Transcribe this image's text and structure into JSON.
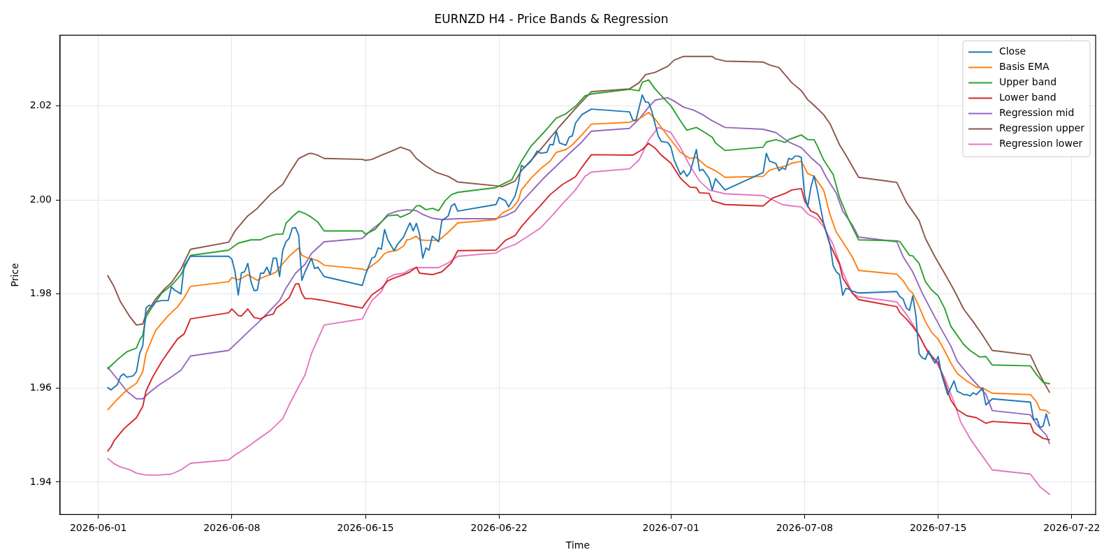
{
  "chart_data": {
    "type": "line",
    "title": "EURNZD H4 - Price Bands & Regression",
    "xlabel": "Time",
    "ylabel": "Price",
    "xlim": [
      "2026-05-30T00:00",
      "2026-07-23T06:00"
    ],
    "xticks": [
      "2026-06-01",
      "2026-06-08",
      "2026-06-15",
      "2026-06-22",
      "2026-07-01",
      "2026-07-08",
      "2026-07-15",
      "2026-07-22"
    ],
    "ylim": [
      1.9331,
      2.035
    ],
    "yticks": [
      1.94,
      1.96,
      1.98,
      {
        "value": 2,
        "label": "2.00"
      },
      2.02
    ],
    "grid": true,
    "legend": "top right",
    "series": [
      {
        "name": "Close",
        "color": "#1f77b4",
        "x": [
          "2026-06-01T12:00",
          "2026-06-01T16:00",
          "2026-06-02T00:00",
          "2026-06-02T04:00",
          "2026-06-02T08:00",
          "2026-06-02T12:00",
          "2026-06-02T20:00",
          "2026-06-03T00:00",
          "2026-06-03T04:00",
          "2026-06-03T08:00",
          "2026-06-03T12:00",
          "2026-06-03T16:00",
          "2026-06-03T20:00",
          "2026-06-04T00:00",
          "2026-06-04T08:00",
          "2026-06-04T16:00",
          "2026-06-04T20:00",
          "2026-06-05T00:00",
          "2026-06-05T08:00",
          "2026-06-05T12:00",
          "2026-06-05T20:00",
          "2026-06-07T20:00",
          "2026-06-08T00:00",
          "2026-06-08T04:00",
          "2026-06-08T08:00",
          "2026-06-08T12:00",
          "2026-06-08T16:00",
          "2026-06-08T20:00",
          "2026-06-09T00:00",
          "2026-06-09T04:00",
          "2026-06-09T08:00",
          "2026-06-09T12:00",
          "2026-06-09T16:00",
          "2026-06-09T20:00",
          "2026-06-10T00:00",
          "2026-06-10T04:00",
          "2026-06-10T08:00",
          "2026-06-10T12:00",
          "2026-06-10T16:00",
          "2026-06-10T20:00",
          "2026-06-11T00:00",
          "2026-06-11T04:00",
          "2026-06-11T08:00",
          "2026-06-11T12:00",
          "2026-06-11T16:00",
          "2026-06-11T20:00",
          "2026-06-12T04:00",
          "2026-06-12T08:00",
          "2026-06-12T12:00",
          "2026-06-12T20:00",
          "2026-06-14T20:00",
          "2026-06-15T00:00",
          "2026-06-15T08:00",
          "2026-06-15T12:00",
          "2026-06-15T16:00",
          "2026-06-15T20:00",
          "2026-06-16T00:00",
          "2026-06-16T04:00",
          "2026-06-16T12:00",
          "2026-06-16T16:00",
          "2026-06-17T00:00",
          "2026-06-17T04:00",
          "2026-06-17T08:00",
          "2026-06-17T12:00",
          "2026-06-17T16:00",
          "2026-06-17T20:00",
          "2026-06-18T00:00",
          "2026-06-18T04:00",
          "2026-06-18T08:00",
          "2026-06-18T12:00",
          "2026-06-18T20:00",
          "2026-06-19T00:00",
          "2026-06-19T08:00",
          "2026-06-19T12:00",
          "2026-06-19T16:00",
          "2026-06-19T20:00",
          "2026-06-21T20:00",
          "2026-06-22T00:00",
          "2026-06-22T08:00",
          "2026-06-22T12:00",
          "2026-06-22T20:00",
          "2026-06-23T00:00",
          "2026-06-23T04:00",
          "2026-06-23T08:00",
          "2026-06-23T16:00",
          "2026-06-24T00:00",
          "2026-06-24T04:00",
          "2026-06-24T12:00",
          "2026-06-24T16:00",
          "2026-06-24T20:00",
          "2026-06-25T00:00",
          "2026-06-25T04:00",
          "2026-06-25T12:00",
          "2026-06-25T16:00",
          "2026-06-25T20:00",
          "2026-06-26T00:00",
          "2026-06-26T08:00",
          "2026-06-26T20:00",
          "2026-06-28T20:00",
          "2026-06-29T00:00",
          "2026-06-29T04:00",
          "2026-06-29T12:00",
          "2026-06-29T16:00",
          "2026-06-29T20:00",
          "2026-06-30T00:00",
          "2026-06-30T08:00",
          "2026-06-30T12:00",
          "2026-06-30T20:00",
          "2026-07-01T00:00",
          "2026-07-01T04:00",
          "2026-07-01T12:00",
          "2026-07-01T16:00",
          "2026-07-01T20:00",
          "2026-07-02T00:00",
          "2026-07-02T08:00",
          "2026-07-02T12:00",
          "2026-07-02T16:00",
          "2026-07-03T00:00",
          "2026-07-03T04:00",
          "2026-07-03T08:00",
          "2026-07-03T12:00",
          "2026-07-03T20:00",
          "2026-07-05T20:00",
          "2026-07-06T00:00",
          "2026-07-06T04:00",
          "2026-07-06T08:00",
          "2026-07-06T12:00",
          "2026-07-06T16:00",
          "2026-07-06T20:00",
          "2026-07-07T00:00",
          "2026-07-07T04:00",
          "2026-07-07T08:00",
          "2026-07-07T12:00",
          "2026-07-07T16:00",
          "2026-07-07T20:00",
          "2026-07-08T00:00",
          "2026-07-08T04:00",
          "2026-07-08T08:00",
          "2026-07-08T12:00",
          "2026-07-08T16:00",
          "2026-07-08T20:00",
          "2026-07-09T00:00",
          "2026-07-09T08:00",
          "2026-07-09T12:00",
          "2026-07-09T16:00",
          "2026-07-09T20:00",
          "2026-07-10T00:00",
          "2026-07-10T04:00",
          "2026-07-10T08:00",
          "2026-07-10T12:00",
          "2026-07-10T20:00",
          "2026-07-12T20:00",
          "2026-07-13T00:00",
          "2026-07-13T04:00",
          "2026-07-13T08:00",
          "2026-07-13T12:00",
          "2026-07-13T16:00",
          "2026-07-13T20:00",
          "2026-07-14T00:00",
          "2026-07-14T04:00",
          "2026-07-14T08:00",
          "2026-07-14T12:00",
          "2026-07-14T16:00",
          "2026-07-14T20:00",
          "2026-07-15T00:00",
          "2026-07-15T04:00",
          "2026-07-15T12:00",
          "2026-07-15T20:00",
          "2026-07-16T00:00",
          "2026-07-16T04:00",
          "2026-07-16T08:00",
          "2026-07-16T12:00",
          "2026-07-16T16:00",
          "2026-07-16T20:00",
          "2026-07-17T00:00",
          "2026-07-17T04:00",
          "2026-07-17T08:00",
          "2026-07-17T12:00",
          "2026-07-17T20:00",
          "2026-07-19T20:00",
          "2026-07-20T00:00",
          "2026-07-20T04:00",
          "2026-07-20T08:00",
          "2026-07-20T12:00",
          "2026-07-20T16:00",
          "2026-07-20T20:00"
        ],
        "values": [
          1.9601,
          1.9596,
          1.9607,
          1.9625,
          1.963,
          1.9623,
          1.9626,
          1.9635,
          1.9673,
          1.969,
          1.977,
          1.9776,
          1.9773,
          1.9783,
          1.9786,
          1.9786,
          1.9815,
          1.9808,
          1.98,
          1.986,
          1.988,
          1.988,
          1.9874,
          1.9847,
          1.9798,
          1.9845,
          1.9847,
          1.9865,
          1.9826,
          1.9807,
          1.9808,
          1.9844,
          1.9844,
          1.9857,
          1.9841,
          1.9876,
          1.9876,
          1.9837,
          1.9893,
          1.9911,
          1.9918,
          1.994,
          1.9941,
          1.9925,
          1.9829,
          1.9847,
          1.9876,
          1.9854,
          1.9857,
          1.9837,
          1.9818,
          1.9841,
          1.9876,
          1.9879,
          1.9898,
          1.9895,
          1.9937,
          1.9915,
          1.9892,
          1.9905,
          1.9921,
          1.9937,
          1.9951,
          1.9934,
          1.995,
          1.9927,
          1.9876,
          1.9898,
          1.9893,
          1.9923,
          1.9911,
          1.9956,
          1.9966,
          1.9987,
          1.9992,
          1.9976,
          1.999,
          2.0005,
          1.9998,
          1.9985,
          2.0008,
          2.0033,
          2.0073,
          2.0069,
          2.0082,
          2.0104,
          2.0099,
          2.0101,
          2.0118,
          2.0117,
          2.0146,
          2.0121,
          2.0116,
          2.0133,
          2.0136,
          2.0163,
          2.0181,
          2.0193,
          2.0187,
          2.017,
          2.0169,
          2.0223,
          2.0208,
          2.0207,
          2.0188,
          2.0136,
          2.0124,
          2.0122,
          2.0112,
          2.0085,
          2.0054,
          2.0062,
          2.005,
          2.0058,
          2.0107,
          2.0062,
          2.0065,
          2.0046,
          2.0021,
          2.0045,
          2.0037,
          2.0021,
          2.0058,
          2.0099,
          2.0082,
          2.008,
          2.0077,
          2.0062,
          2.0068,
          2.0065,
          2.0088,
          2.0086,
          2.0093,
          2.0093,
          2.009,
          2.0011,
          1.9985,
          2.0027,
          2.0051,
          2.0021,
          1.9985,
          1.995,
          1.9905,
          1.986,
          1.9847,
          1.9841,
          1.9797,
          1.9812,
          1.981,
          1.9806,
          1.9802,
          1.9805,
          1.9794,
          1.9789,
          1.977,
          1.9765,
          1.9796,
          1.9754,
          1.9673,
          1.9664,
          1.9661,
          1.9679,
          1.9664,
          1.9653,
          1.9667,
          1.9631,
          1.9586,
          1.9615,
          1.9593,
          1.959,
          1.9586,
          1.9586,
          1.9583,
          1.959,
          1.9586,
          1.9593,
          1.96,
          1.9564,
          1.9577,
          1.957,
          1.9532,
          1.9535,
          1.9516,
          1.9519,
          1.9545,
          1.952
        ]
      },
      {
        "name": "Basis EMA",
        "color": "#ff7f0e",
        "x": [
          "2026-06-01T12:00",
          "2026-06-02T00:00",
          "2026-06-02T12:00",
          "2026-06-03T00:00",
          "2026-06-03T08:00",
          "2026-06-03T12:00",
          "2026-06-04T00:00",
          "2026-06-04T16:00",
          "2026-06-05T04:00",
          "2026-06-05T12:00",
          "2026-06-05T20:00",
          "2026-06-07T20:00",
          "2026-06-08T00:00",
          "2026-06-08T08:00",
          "2026-06-08T12:00",
          "2026-06-08T20:00",
          "2026-06-09T08:00",
          "2026-06-09T16:00",
          "2026-06-10T00:00",
          "2026-06-10T08:00",
          "2026-06-10T12:00",
          "2026-06-11T00:00",
          "2026-06-11T12:00",
          "2026-06-11T16:00",
          "2026-06-12T00:00",
          "2026-06-12T12:00",
          "2026-06-12T20:00",
          "2026-06-14T20:00",
          "2026-06-15T00:00",
          "2026-06-15T08:00",
          "2026-06-15T16:00",
          "2026-06-16T00:00",
          "2026-06-16T04:00",
          "2026-06-16T16:00",
          "2026-06-17T00:00",
          "2026-06-17T04:00",
          "2026-06-17T08:00",
          "2026-06-17T16:00",
          "2026-06-17T20:00",
          "2026-06-18T04:00",
          "2026-06-18T20:00",
          "2026-06-19T08:00",
          "2026-06-19T20:00",
          "2026-06-21T20:00",
          "2026-06-22T04:00",
          "2026-06-22T16:00",
          "2026-06-23T00:00",
          "2026-06-23T04:00",
          "2026-06-23T16:00",
          "2026-06-24T04:00",
          "2026-06-24T16:00",
          "2026-06-25T00:00",
          "2026-06-25T12:00",
          "2026-06-25T20:00",
          "2026-06-26T08:00",
          "2026-06-26T20:00",
          "2026-06-28T20:00",
          "2026-06-29T08:00",
          "2026-06-29T20:00",
          "2026-06-30T04:00",
          "2026-06-30T20:00",
          "2026-07-01T12:00",
          "2026-07-02T00:00",
          "2026-07-02T08:00",
          "2026-07-02T20:00",
          "2026-07-03T08:00",
          "2026-07-03T20:00",
          "2026-07-05T20:00",
          "2026-07-06T04:00",
          "2026-07-06T12:00",
          "2026-07-07T00:00",
          "2026-07-07T08:00",
          "2026-07-07T20:00",
          "2026-07-08T04:00",
          "2026-07-08T12:00",
          "2026-07-09T00:00",
          "2026-07-09T08:00",
          "2026-07-09T16:00",
          "2026-07-10T00:00",
          "2026-07-10T12:00",
          "2026-07-10T20:00",
          "2026-07-12T20:00",
          "2026-07-13T04:00",
          "2026-07-13T12:00",
          "2026-07-13T16:00",
          "2026-07-14T00:00",
          "2026-07-14T08:00",
          "2026-07-14T16:00",
          "2026-07-15T00:00",
          "2026-07-15T08:00",
          "2026-07-15T16:00",
          "2026-07-16T00:00",
          "2026-07-16T12:00",
          "2026-07-17T00:00",
          "2026-07-17T08:00",
          "2026-07-17T20:00",
          "2026-07-19T20:00",
          "2026-07-20T04:00",
          "2026-07-20T08:00",
          "2026-07-20T16:00",
          "2026-07-20T20:00"
        ],
        "values": [
          1.9554,
          1.9576,
          1.9596,
          1.961,
          1.9635,
          1.9673,
          1.9722,
          1.9754,
          1.9773,
          1.9792,
          1.9816,
          1.9826,
          1.9835,
          1.983,
          1.9833,
          1.9841,
          1.9829,
          1.9836,
          1.9841,
          1.9847,
          1.9857,
          1.988,
          1.9898,
          1.9882,
          1.9876,
          1.9871,
          1.9861,
          1.9853,
          1.985,
          1.986,
          1.987,
          1.9886,
          1.9889,
          1.9893,
          1.9902,
          1.9915,
          1.9916,
          1.9923,
          1.9915,
          1.9914,
          1.9914,
          1.9931,
          1.9951,
          1.9958,
          1.9972,
          1.9982,
          1.9998,
          2.0021,
          2.0046,
          2.0066,
          2.0082,
          2.0101,
          2.0107,
          2.0117,
          2.0138,
          2.0161,
          2.0165,
          2.0172,
          2.0186,
          2.0172,
          2.0136,
          2.0101,
          2.0088,
          2.009,
          2.0072,
          2.0062,
          2.0048,
          2.005,
          2.0063,
          2.0067,
          2.0072,
          2.0078,
          2.0082,
          2.0056,
          2.005,
          2.0021,
          1.9969,
          1.9931,
          1.9911,
          1.9879,
          1.985,
          1.9842,
          1.9828,
          1.9807,
          1.9802,
          1.9773,
          1.9741,
          1.9718,
          1.9704,
          1.968,
          1.9653,
          1.9631,
          1.9615,
          1.9602,
          1.96,
          1.9589,
          1.9586,
          1.957,
          1.9554,
          1.9552,
          1.9546
        ]
      },
      {
        "name": "Upper band",
        "color": "#2ca02c",
        "x": [
          "2026-06-01T12:00",
          "2026-06-01T20:00",
          "2026-06-02T04:00",
          "2026-06-02T12:00",
          "2026-06-03T00:00",
          "2026-06-03T04:00",
          "2026-06-03T08:00",
          "2026-06-03T12:00",
          "2026-06-03T20:00",
          "2026-06-04T08:00",
          "2026-06-04T20:00",
          "2026-06-05T04:00",
          "2026-06-05T08:00",
          "2026-06-05T20:00",
          "2026-06-07T20:00",
          "2026-06-08T08:00",
          "2026-06-09T00:00",
          "2026-06-09T12:00",
          "2026-06-09T20:00",
          "2026-06-10T08:00",
          "2026-06-10T16:00",
          "2026-06-10T20:00",
          "2026-06-11T04:00",
          "2026-06-11T12:00",
          "2026-06-11T20:00",
          "2026-06-12T04:00",
          "2026-06-12T12:00",
          "2026-06-12T20:00",
          "2026-06-14T20:00",
          "2026-06-15T00:00",
          "2026-06-15T12:00",
          "2026-06-15T20:00",
          "2026-06-16T04:00",
          "2026-06-16T16:00",
          "2026-06-16T20:00",
          "2026-06-17T08:00",
          "2026-06-17T16:00",
          "2026-06-17T20:00",
          "2026-06-18T04:00",
          "2026-06-18T12:00",
          "2026-06-18T20:00",
          "2026-06-19T04:00",
          "2026-06-19T12:00",
          "2026-06-19T20:00",
          "2026-06-21T20:00",
          "2026-06-22T04:00",
          "2026-06-22T16:00",
          "2026-06-23T04:00",
          "2026-06-23T16:00",
          "2026-06-24T08:00",
          "2026-06-25T00:00",
          "2026-06-25T12:00",
          "2026-06-26T00:00",
          "2026-06-26T12:00",
          "2026-06-26T20:00",
          "2026-06-28T20:00",
          "2026-06-29T08:00",
          "2026-06-29T12:00",
          "2026-06-29T20:00",
          "2026-06-30T04:00",
          "2026-06-30T16:00",
          "2026-07-01T00:00",
          "2026-07-01T12:00",
          "2026-07-01T20:00",
          "2026-07-02T08:00",
          "2026-07-02T16:00",
          "2026-07-03T04:00",
          "2026-07-03T08:00",
          "2026-07-03T20:00",
          "2026-07-05T20:00",
          "2026-07-06T00:00",
          "2026-07-06T12:00",
          "2026-07-07T00:00",
          "2026-07-07T04:00",
          "2026-07-07T12:00",
          "2026-07-07T20:00",
          "2026-07-08T04:00",
          "2026-07-08T12:00",
          "2026-07-08T16:00",
          "2026-07-09T00:00",
          "2026-07-09T12:00",
          "2026-07-09T20:00",
          "2026-07-10T08:00",
          "2026-07-10T20:00",
          "2026-07-12T20:00",
          "2026-07-13T00:00",
          "2026-07-13T12:00",
          "2026-07-13T16:00",
          "2026-07-14T00:00",
          "2026-07-14T08:00",
          "2026-07-14T16:00",
          "2026-07-15T00:00",
          "2026-07-15T08:00",
          "2026-07-15T16:00",
          "2026-07-16T00:00",
          "2026-07-16T08:00",
          "2026-07-16T16:00",
          "2026-07-17T04:00",
          "2026-07-17T12:00",
          "2026-07-17T20:00",
          "2026-07-19T20:00",
          "2026-07-20T04:00",
          "2026-07-20T12:00",
          "2026-07-20T20:00"
        ],
        "values": [
          1.9641,
          1.9654,
          1.9666,
          1.9677,
          1.9685,
          1.9702,
          1.9712,
          1.9751,
          1.9773,
          1.9802,
          1.9818,
          1.9833,
          1.9841,
          1.9882,
          1.9893,
          1.9908,
          1.9915,
          1.9915,
          1.9921,
          1.9927,
          1.9927,
          1.995,
          1.9964,
          1.9976,
          1.9971,
          1.9963,
          1.9953,
          1.9934,
          1.9934,
          1.9927,
          1.9937,
          1.9953,
          1.9966,
          1.9968,
          1.9963,
          1.9972,
          1.9987,
          1.9988,
          1.9979,
          1.9982,
          1.9977,
          1.9998,
          2.0011,
          2.0016,
          2.0026,
          2.0033,
          2.0043,
          2.0082,
          2.0114,
          2.0143,
          2.0174,
          2.0183,
          2.0199,
          2.0221,
          2.0225,
          2.0235,
          2.0232,
          2.025,
          2.0255,
          2.0236,
          2.0214,
          2.02,
          2.0168,
          2.0148,
          2.0154,
          2.0146,
          2.0133,
          2.0121,
          2.0105,
          2.0112,
          2.0123,
          2.0128,
          2.0122,
          2.0128,
          2.0133,
          2.0138,
          2.0128,
          2.0128,
          2.0115,
          2.0085,
          2.0054,
          2.0005,
          1.9956,
          1.9915,
          1.9913,
          1.9911,
          1.9882,
          1.9881,
          1.9865,
          1.9826,
          1.9808,
          1.9796,
          1.977,
          1.9731,
          1.9712,
          1.9693,
          1.968,
          1.9666,
          1.9667,
          1.9649,
          1.9647,
          1.9628,
          1.9612,
          1.9609
        ]
      },
      {
        "name": "Lower band",
        "color": "#d62728",
        "x": [
          "2026-06-01T12:00",
          "2026-06-01T16:00",
          "2026-06-01T20:00",
          "2026-06-02T08:00",
          "2026-06-02T16:00",
          "2026-06-03T00:00",
          "2026-06-03T08:00",
          "2026-06-03T12:00",
          "2026-06-03T20:00",
          "2026-06-04T08:00",
          "2026-06-04T20:00",
          "2026-06-05T04:00",
          "2026-06-05T12:00",
          "2026-06-05T20:00",
          "2026-06-07T20:00",
          "2026-06-08T00:00",
          "2026-06-08T08:00",
          "2026-06-08T12:00",
          "2026-06-08T20:00",
          "2026-06-09T04:00",
          "2026-06-09T12:00",
          "2026-06-09T20:00",
          "2026-06-10T04:00",
          "2026-06-10T08:00",
          "2026-06-10T16:00",
          "2026-06-11T00:00",
          "2026-06-11T08:00",
          "2026-06-11T12:00",
          "2026-06-11T16:00",
          "2026-06-11T20:00",
          "2026-06-12T04:00",
          "2026-06-12T12:00",
          "2026-06-12T20:00",
          "2026-06-14T20:00",
          "2026-06-15T00:00",
          "2026-06-15T08:00",
          "2026-06-15T20:00",
          "2026-06-16T04:00",
          "2026-06-16T12:00",
          "2026-06-17T00:00",
          "2026-06-17T08:00",
          "2026-06-17T16:00",
          "2026-06-17T20:00",
          "2026-06-18T12:00",
          "2026-06-19T00:00",
          "2026-06-19T12:00",
          "2026-06-19T20:00",
          "2026-06-21T20:00",
          "2026-06-22T08:00",
          "2026-06-22T20:00",
          "2026-06-23T04:00",
          "2026-06-23T16:00",
          "2026-06-24T04:00",
          "2026-06-24T16:00",
          "2026-06-25T08:00",
          "2026-06-26T00:00",
          "2026-06-26T08:00",
          "2026-06-26T20:00",
          "2026-06-29T00:00",
          "2026-06-29T12:00",
          "2026-06-29T20:00",
          "2026-06-30T04:00",
          "2026-06-30T12:00",
          "2026-07-01T00:00",
          "2026-07-01T12:00",
          "2026-07-02T00:00",
          "2026-07-02T08:00",
          "2026-07-02T12:00",
          "2026-07-03T00:00",
          "2026-07-03T04:00",
          "2026-07-03T20:00",
          "2026-07-05T20:00",
          "2026-07-06T08:00",
          "2026-07-07T00:00",
          "2026-07-07T08:00",
          "2026-07-07T20:00",
          "2026-07-08T00:00",
          "2026-07-08T08:00",
          "2026-07-08T16:00",
          "2026-07-09T00:00",
          "2026-07-09T08:00",
          "2026-07-09T20:00",
          "2026-07-10T00:00",
          "2026-07-10T12:00",
          "2026-07-10T20:00",
          "2026-07-12T20:00",
          "2026-07-13T00:00",
          "2026-07-13T08:00",
          "2026-07-13T16:00",
          "2026-07-14T00:00",
          "2026-07-14T12:00",
          "2026-07-15T00:00",
          "2026-07-15T16:00",
          "2026-07-16T00:00",
          "2026-07-16T12:00",
          "2026-07-17T00:00",
          "2026-07-17T12:00",
          "2026-07-17T20:00",
          "2026-07-19T20:00",
          "2026-07-20T00:00",
          "2026-07-20T12:00",
          "2026-07-20T20:00"
        ],
        "values": [
          1.9466,
          1.9475,
          1.9488,
          1.9513,
          1.9525,
          1.9537,
          1.9561,
          1.9593,
          1.9622,
          1.9657,
          1.9686,
          1.9705,
          1.9715,
          1.9747,
          1.976,
          1.9768,
          1.9754,
          1.9753,
          1.9768,
          1.975,
          1.9747,
          1.9754,
          1.9757,
          1.977,
          1.978,
          1.9792,
          1.9821,
          1.9822,
          1.9801,
          1.979,
          1.979,
          1.9788,
          1.9786,
          1.977,
          1.978,
          1.9798,
          1.9812,
          1.9828,
          1.9834,
          1.9841,
          1.9847,
          1.9857,
          1.9844,
          1.9841,
          1.9847,
          1.9866,
          1.9892,
          1.9893,
          1.9914,
          1.9924,
          1.9943,
          1.9966,
          1.9988,
          2.0011,
          2.0033,
          2.0049,
          2.0069,
          2.0096,
          2.0095,
          2.0107,
          2.012,
          2.011,
          2.0095,
          2.0078,
          2.0046,
          2.0027,
          2.0026,
          2.0015,
          2.0014,
          1.9998,
          1.999,
          1.9987,
          2.0004,
          2.0014,
          2.0021,
          2.0024,
          1.9998,
          1.9976,
          1.997,
          1.995,
          1.9905,
          1.9863,
          1.9834,
          1.9802,
          1.9788,
          1.9773,
          1.976,
          1.9747,
          1.9731,
          1.9712,
          1.9673,
          1.9654,
          1.9574,
          1.9554,
          1.9541,
          1.9537,
          1.9525,
          1.9529,
          1.9524,
          1.9506,
          1.9493,
          1.949
        ]
      },
      {
        "name": "Regression mid",
        "color": "#9467bd",
        "x": [
          "2026-06-01T12:00",
          "2026-06-02T00:00",
          "2026-06-02T12:00",
          "2026-06-03T00:00",
          "2026-06-03T08:00",
          "2026-06-03T16:00",
          "2026-06-04T04:00",
          "2026-06-04T16:00",
          "2026-06-05T08:00",
          "2026-06-05T20:00",
          "2026-06-07T20:00",
          "2026-06-08T08:00",
          "2026-06-09T00:00",
          "2026-06-09T12:00",
          "2026-06-10T00:00",
          "2026-06-10T12:00",
          "2026-06-10T20:00",
          "2026-06-11T08:00",
          "2026-06-11T20:00",
          "2026-06-12T04:00",
          "2026-06-12T20:00",
          "2026-06-14T20:00",
          "2026-06-15T08:00",
          "2026-06-15T20:00",
          "2026-06-16T04:00",
          "2026-06-16T16:00",
          "2026-06-17T04:00",
          "2026-06-17T16:00",
          "2026-06-18T00:00",
          "2026-06-18T12:00",
          "2026-06-19T00:00",
          "2026-06-19T20:00",
          "2026-06-21T20:00",
          "2026-06-22T08:00",
          "2026-06-22T20:00",
          "2026-06-23T04:00",
          "2026-06-23T16:00",
          "2026-06-24T08:00",
          "2026-06-25T00:00",
          "2026-06-25T16:00",
          "2026-06-26T08:00",
          "2026-06-26T20:00",
          "2026-06-28T20:00",
          "2026-06-29T08:00",
          "2026-06-29T20:00",
          "2026-06-30T04:00",
          "2026-06-30T20:00",
          "2026-07-01T04:00",
          "2026-07-01T16:00",
          "2026-07-02T04:00",
          "2026-07-02T16:00",
          "2026-07-03T04:00",
          "2026-07-03T20:00",
          "2026-07-05T20:00",
          "2026-07-06T12:00",
          "2026-07-07T04:00",
          "2026-07-07T20:00",
          "2026-07-08T08:00",
          "2026-07-08T20:00",
          "2026-07-09T04:00",
          "2026-07-09T16:00",
          "2026-07-10T00:00",
          "2026-07-10T12:00",
          "2026-07-10T20:00",
          "2026-07-12T20:00",
          "2026-07-13T04:00",
          "2026-07-13T16:00",
          "2026-07-14T04:00",
          "2026-07-14T16:00",
          "2026-07-15T04:00",
          "2026-07-15T16:00",
          "2026-07-16T00:00",
          "2026-07-16T12:00",
          "2026-07-17T00:00",
          "2026-07-17T12:00",
          "2026-07-17T20:00",
          "2026-07-19T20:00",
          "2026-07-20T04:00",
          "2026-07-20T16:00",
          "2026-07-20T20:00"
        ],
        "values": [
          1.9644,
          1.9619,
          1.9593,
          1.9577,
          1.9577,
          1.959,
          1.9606,
          1.9619,
          1.9638,
          1.9668,
          1.968,
          1.9699,
          1.9725,
          1.9744,
          1.9765,
          1.9786,
          1.9812,
          1.9844,
          1.9863,
          1.9886,
          1.9911,
          1.9918,
          1.9937,
          1.9953,
          1.9969,
          1.9976,
          1.9979,
          1.9977,
          1.9969,
          1.9961,
          1.9958,
          1.996,
          1.996,
          1.9966,
          1.9976,
          1.9995,
          2.0017,
          2.0046,
          2.0072,
          2.0098,
          2.0123,
          2.0146,
          2.0152,
          2.0172,
          2.0197,
          2.0212,
          2.0217,
          2.021,
          2.0197,
          2.0191,
          2.0181,
          2.0168,
          2.0154,
          2.015,
          2.0143,
          2.0123,
          2.0111,
          2.009,
          2.0072,
          2.0046,
          2.0014,
          1.9976,
          1.9947,
          1.9921,
          1.9911,
          1.9879,
          1.9847,
          1.9802,
          1.9763,
          1.9725,
          1.9689,
          1.9657,
          1.9632,
          1.9609,
          1.9587,
          1.9552,
          1.9543,
          1.9522,
          1.95,
          1.9482
        ]
      },
      {
        "name": "Regression upper",
        "color": "#8c564b",
        "x": [
          "2026-06-01T12:00",
          "2026-06-01T20:00",
          "2026-06-02T04:00",
          "2026-06-02T16:00",
          "2026-06-03T00:00",
          "2026-06-03T08:00",
          "2026-06-03T12:00",
          "2026-06-04T00:00",
          "2026-06-04T12:00",
          "2026-06-04T20:00",
          "2026-06-05T08:00",
          "2026-06-05T20:00",
          "2026-06-07T20:00",
          "2026-06-08T04:00",
          "2026-06-08T20:00",
          "2026-06-09T08:00",
          "2026-06-10T00:00",
          "2026-06-10T16:00",
          "2026-06-11T00:00",
          "2026-06-11T12:00",
          "2026-06-12T00:00",
          "2026-06-12T04:00",
          "2026-06-12T12:00",
          "2026-06-12T20:00",
          "2026-06-14T20:00",
          "2026-06-15T00:00",
          "2026-06-15T08:00",
          "2026-06-15T20:00",
          "2026-06-16T08:00",
          "2026-06-16T20:00",
          "2026-06-17T08:00",
          "2026-06-17T16:00",
          "2026-06-18T04:00",
          "2026-06-18T16:00",
          "2026-06-19T08:00",
          "2026-06-19T20:00",
          "2026-06-21T20:00",
          "2026-06-22T04:00",
          "2026-06-22T20:00",
          "2026-06-23T04:00",
          "2026-06-23T20:00",
          "2026-06-24T12:00",
          "2026-06-25T04:00",
          "2026-06-26T00:00",
          "2026-06-26T20:00",
          "2026-06-28T20:00",
          "2026-06-29T08:00",
          "2026-06-29T16:00",
          "2026-06-30T04:00",
          "2026-06-30T20:00",
          "2026-07-01T04:00",
          "2026-07-01T16:00",
          "2026-07-02T08:00",
          "2026-07-03T04:00",
          "2026-07-03T08:00",
          "2026-07-03T20:00",
          "2026-07-05T20:00",
          "2026-07-06T04:00",
          "2026-07-06T16:00",
          "2026-07-07T00:00",
          "2026-07-07T08:00",
          "2026-07-07T20:00",
          "2026-07-08T04:00",
          "2026-07-08T12:00",
          "2026-07-09T00:00",
          "2026-07-09T08:00",
          "2026-07-09T20:00",
          "2026-07-10T04:00",
          "2026-07-10T20:00",
          "2026-07-12T20:00",
          "2026-07-13T08:00",
          "2026-07-14T00:00",
          "2026-07-14T08:00",
          "2026-07-14T20:00",
          "2026-07-15T08:00",
          "2026-07-15T20:00",
          "2026-07-16T08:00",
          "2026-07-16T20:00",
          "2026-07-17T08:00",
          "2026-07-17T20:00",
          "2026-07-19T20:00",
          "2026-07-20T04:00",
          "2026-07-20T12:00",
          "2026-07-20T20:00"
        ],
        "values": [
          1.9839,
          1.9815,
          1.9783,
          1.9751,
          1.9734,
          1.9736,
          1.9757,
          1.9789,
          1.9812,
          1.9824,
          1.9853,
          1.9895,
          1.991,
          1.9934,
          1.9966,
          1.9982,
          2.0011,
          2.0033,
          2.0056,
          2.0088,
          2.0098,
          2.0099,
          2.0095,
          2.0088,
          2.0086,
          2.0084,
          2.0086,
          2.0095,
          2.0103,
          2.0112,
          2.0105,
          2.0088,
          2.0072,
          2.0059,
          2.005,
          2.0038,
          2.003,
          2.0028,
          2.004,
          2.0062,
          2.0091,
          2.0123,
          2.0156,
          2.0194,
          2.023,
          2.0236,
          2.0249,
          2.0266,
          2.0271,
          2.0284,
          2.0297,
          2.0305,
          2.0305,
          2.0305,
          2.03,
          2.0295,
          2.0293,
          2.0287,
          2.0281,
          2.0265,
          2.0249,
          2.0232,
          2.0213,
          2.0201,
          2.0181,
          2.0162,
          2.0117,
          2.0095,
          2.0048,
          2.0037,
          1.9995,
          1.9956,
          1.9918,
          1.9879,
          1.9844,
          1.9808,
          1.9768,
          1.9741,
          1.9712,
          1.968,
          1.967,
          1.9641,
          1.9615,
          1.9591
        ]
      },
      {
        "name": "Regression lower",
        "color": "#e377c2",
        "x": [
          "2026-06-01T12:00",
          "2026-06-01T20:00",
          "2026-06-02T04:00",
          "2026-06-02T16:00",
          "2026-06-03T00:00",
          "2026-06-03T12:00",
          "2026-06-04T04:00",
          "2026-06-04T20:00",
          "2026-06-05T08:00",
          "2026-06-05T20:00",
          "2026-06-07T20:00",
          "2026-06-08T04:00",
          "2026-06-08T12:00",
          "2026-06-09T00:00",
          "2026-06-09T08:00",
          "2026-06-10T00:00",
          "2026-06-10T16:00",
          "2026-06-11T00:00",
          "2026-06-11T12:00",
          "2026-06-11T20:00",
          "2026-06-12T04:00",
          "2026-06-12T20:00",
          "2026-06-14T20:00",
          "2026-06-15T08:00",
          "2026-06-15T20:00",
          "2026-06-16T04:00",
          "2026-06-16T12:00",
          "2026-06-17T00:00",
          "2026-06-17T08:00",
          "2026-06-17T16:00",
          "2026-06-18T20:00",
          "2026-06-19T08:00",
          "2026-06-19T20:00",
          "2026-06-21T20:00",
          "2026-06-22T04:00",
          "2026-06-22T20:00",
          "2026-06-23T08:00",
          "2026-06-24T04:00",
          "2026-06-24T20:00",
          "2026-06-25T08:00",
          "2026-06-26T00:00",
          "2026-06-26T12:00",
          "2026-06-26T20:00",
          "2026-06-28T20:00",
          "2026-06-29T08:00",
          "2026-06-29T20:00",
          "2026-06-30T08:00",
          "2026-07-01T00:00",
          "2026-07-01T12:00",
          "2026-07-02T00:00",
          "2026-07-02T12:00",
          "2026-07-03T00:00",
          "2026-07-03T20:00",
          "2026-07-05T20:00",
          "2026-07-06T08:00",
          "2026-07-06T20:00",
          "2026-07-07T08:00",
          "2026-07-07T20:00",
          "2026-07-08T04:00",
          "2026-07-08T16:00",
          "2026-07-09T00:00",
          "2026-07-09T12:00",
          "2026-07-10T00:00",
          "2026-07-10T12:00",
          "2026-07-10T20:00",
          "2026-07-12T20:00",
          "2026-07-13T08:00",
          "2026-07-13T20:00",
          "2026-07-14T08:00",
          "2026-07-14T20:00",
          "2026-07-15T08:00",
          "2026-07-15T20:00",
          "2026-07-16T04:00",
          "2026-07-16T16:00",
          "2026-07-17T04:00",
          "2026-07-17T20:00",
          "2026-07-19T20:00",
          "2026-07-20T08:00",
          "2026-07-20T20:00"
        ],
        "values": [
          1.945,
          1.9439,
          1.9432,
          1.9426,
          1.9419,
          1.9415,
          1.9415,
          1.9417,
          1.9426,
          1.944,
          1.9447,
          1.9458,
          1.9466,
          1.948,
          1.949,
          1.9509,
          1.9535,
          1.9564,
          1.9603,
          1.9628,
          1.9673,
          1.9734,
          1.9747,
          1.9786,
          1.9805,
          1.9834,
          1.9841,
          1.9844,
          1.9852,
          1.9856,
          1.9856,
          1.9866,
          1.988,
          1.9887,
          1.9895,
          1.9905,
          1.9918,
          1.994,
          1.9969,
          1.9992,
          2.0021,
          2.005,
          2.0059,
          2.0066,
          2.0085,
          2.0127,
          2.0154,
          2.0143,
          2.0111,
          2.0072,
          2.004,
          2.0021,
          2.0013,
          2.0009,
          2.0,
          1.999,
          1.9987,
          1.9985,
          1.997,
          1.9959,
          1.9943,
          1.9905,
          1.9847,
          1.9802,
          1.9794,
          1.9783,
          1.9757,
          1.9725,
          1.9686,
          1.966,
          1.9622,
          1.957,
          1.9529,
          1.9493,
          1.9464,
          1.9426,
          1.9417,
          1.939,
          1.9374
        ]
      }
    ]
  }
}
